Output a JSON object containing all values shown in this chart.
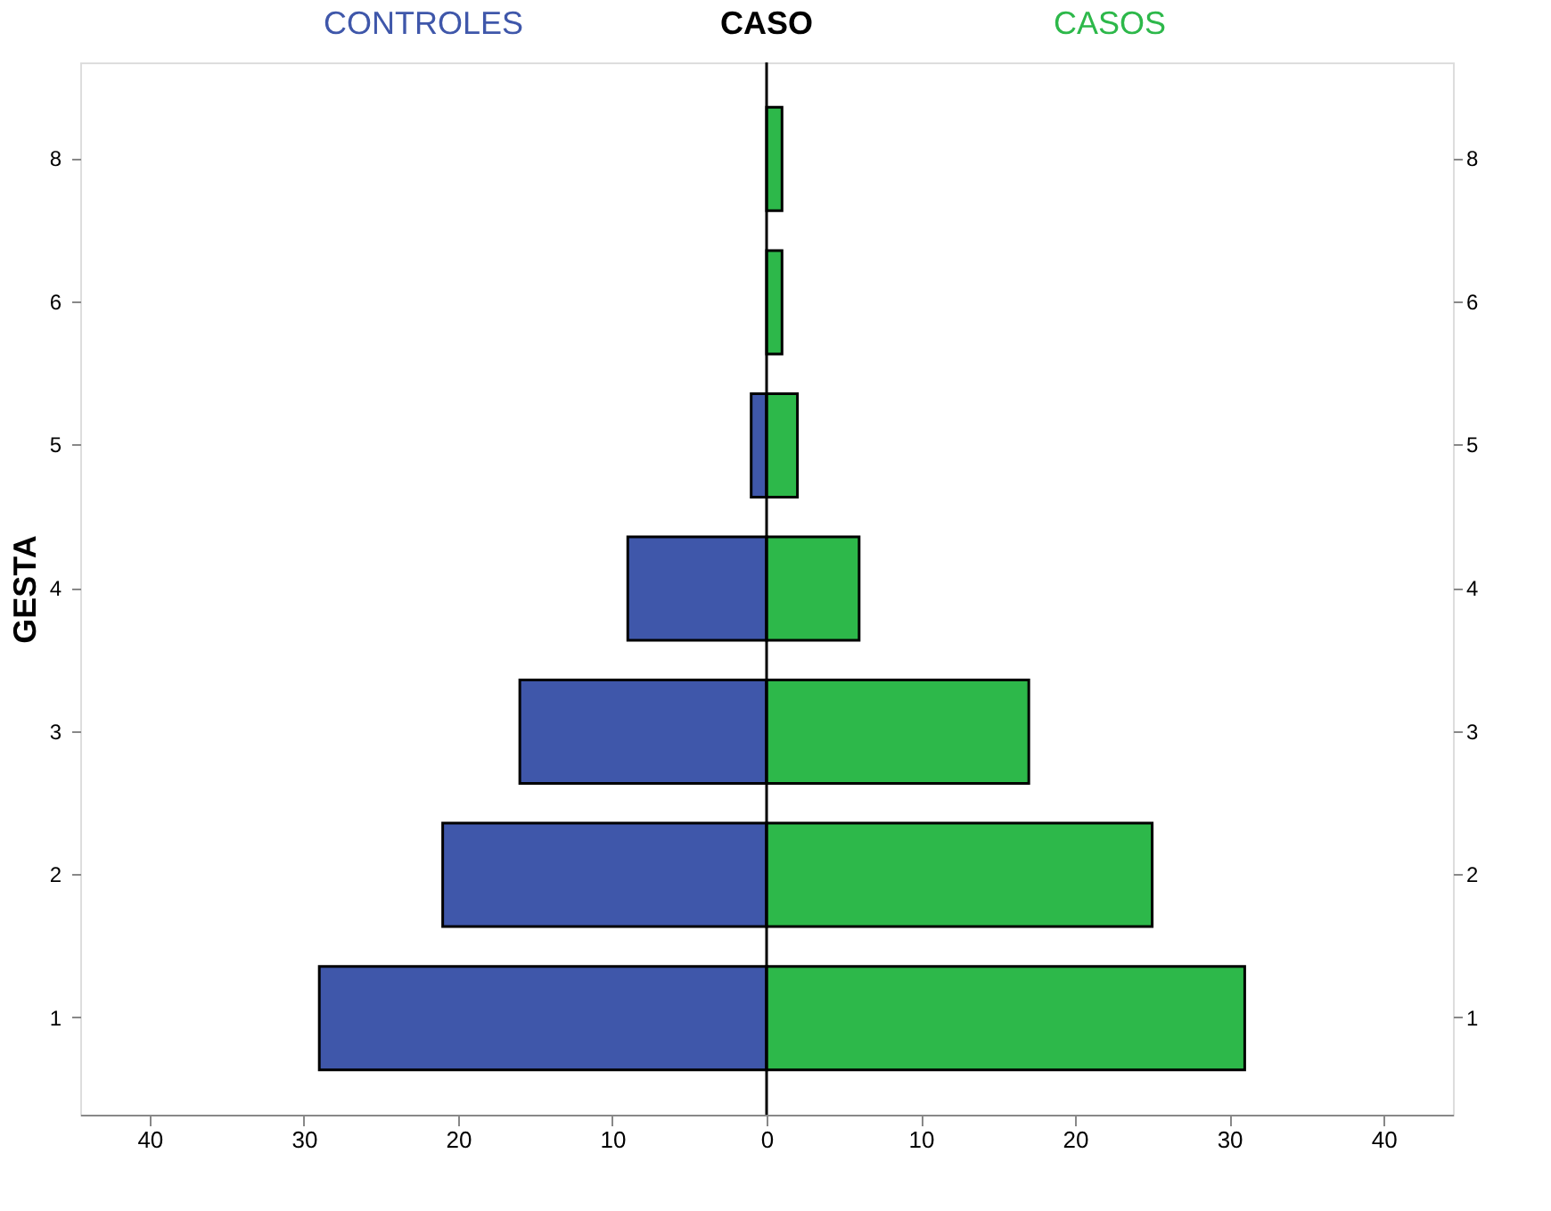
{
  "chart_data": {
    "type": "bar",
    "orientation": "horizontal",
    "legend_title": "CASO",
    "ylabel": "GESTA",
    "legend": "top",
    "grid": false,
    "stacked": true,
    "categories": [
      "8",
      "6",
      "5",
      "4",
      "3",
      "2",
      "1"
    ],
    "series": [
      {
        "name": "CONTROLES",
        "color": "#3f57aa",
        "values": [
          null,
          null,
          -1,
          -9,
          -16,
          -21,
          -29
        ]
      },
      {
        "name": "CASOS",
        "color": "#2db84a",
        "values": [
          1,
          1,
          2,
          6,
          17,
          25,
          31
        ]
      }
    ],
    "xlim": [
      -44.5,
      44.5
    ],
    "xticks": [
      {
        "value": -40,
        "label": "40"
      },
      {
        "value": -30,
        "label": "30"
      },
      {
        "value": -20,
        "label": "20"
      },
      {
        "value": -10,
        "label": "10"
      },
      0,
      10,
      20,
      30,
      40
    ],
    "ref_lines": [
      {
        "axis": "x",
        "value": 0,
        "color": "#000000"
      }
    ]
  }
}
